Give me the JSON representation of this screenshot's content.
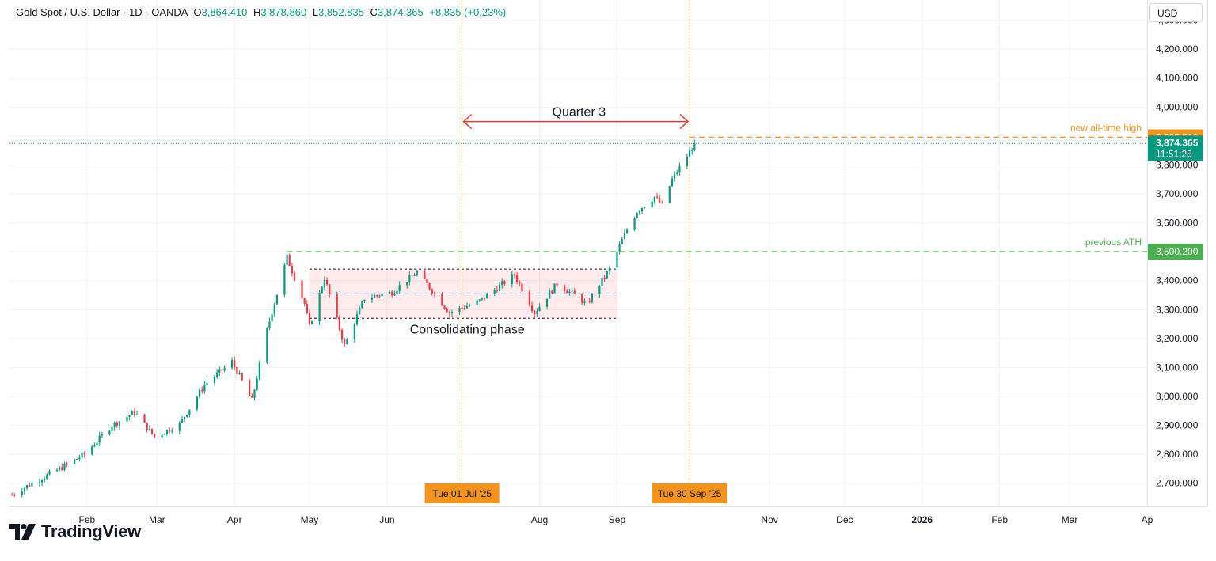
{
  "legend": {
    "symbol": "Gold Spot / U.S. Dollar · 1D · OANDA",
    "open_label": "O",
    "open": "3,864.410",
    "high_label": "H",
    "high": "3,878.860",
    "low_label": "L",
    "low": "3,852.835",
    "close_label": "C",
    "close": "3,874.365",
    "change": "+8.835 (+0.23%)"
  },
  "currency_button": "USD",
  "brand": {
    "name": "TradingView",
    "logo_icon": "tradingview-logo-icon"
  },
  "colors": {
    "up": "#089981",
    "down": "#f23645",
    "accent": "#f7931a",
    "ath": "#4caf50",
    "arrow": "#e53935"
  },
  "chart_data": {
    "type": "candlestick",
    "symbol": "Gold Spot / U.S. Dollar",
    "interval": "1D",
    "y_ticks": [
      2700,
      2800,
      2900,
      3000,
      3100,
      3200,
      3300,
      3400,
      3500,
      3600,
      3700,
      3800,
      3900,
      4000,
      4100,
      4200,
      4300
    ],
    "y_tick_labels": [
      "2,700.000",
      "2,800.000",
      "2,900.000",
      "3,000.000",
      "3,100.000",
      "3,200.000",
      "3,300.000",
      "3,400.000",
      "3,500.000",
      "3,600.000",
      "3,700.000",
      "3,800.000",
      "3,900.000",
      "4,000.000",
      "4,100.000",
      "4,200.000",
      "4,300.000"
    ],
    "ylim": [
      2620,
      4370
    ],
    "x_ticks": [
      {
        "date": "2025-02-01",
        "label": "Feb",
        "bold": false
      },
      {
        "date": "2025-03-01",
        "label": "Mar",
        "bold": false
      },
      {
        "date": "2025-04-01",
        "label": "Apr",
        "bold": false
      },
      {
        "date": "2025-05-01",
        "label": "May",
        "bold": false
      },
      {
        "date": "2025-06-01",
        "label": "Jun",
        "bold": false
      },
      {
        "date": "2025-08-01",
        "label": "Aug",
        "bold": false
      },
      {
        "date": "2025-09-01",
        "label": "Sep",
        "bold": false
      },
      {
        "date": "2025-11-01",
        "label": "Nov",
        "bold": false
      },
      {
        "date": "2025-12-01",
        "label": "Dec",
        "bold": false
      },
      {
        "date": "2026-01-01",
        "label": "2026",
        "bold": true
      },
      {
        "date": "2026-02-01",
        "label": "Feb",
        "bold": false
      },
      {
        "date": "2026-03-01",
        "label": "Mar",
        "bold": false
      },
      {
        "date": "2026-04-01",
        "label": "Ap",
        "bold": false
      }
    ],
    "xlim": [
      "2025-01-01",
      "2026-04-01"
    ],
    "vertical_markers": [
      {
        "date": "2025-07-01",
        "label": "Tue 01 Jul '25"
      },
      {
        "date": "2025-09-30",
        "label": "Tue 30 Sep '25"
      }
    ],
    "trend_points": [
      {
        "date": "2025-01-02",
        "price": 2660
      },
      {
        "date": "2025-01-10",
        "price": 2700
      },
      {
        "date": "2025-01-20",
        "price": 2745
      },
      {
        "date": "2025-01-31",
        "price": 2800
      },
      {
        "date": "2025-02-11",
        "price": 2900
      },
      {
        "date": "2025-02-20",
        "price": 2945
      },
      {
        "date": "2025-02-28",
        "price": 2860
      },
      {
        "date": "2025-03-10",
        "price": 2905
      },
      {
        "date": "2025-03-20",
        "price": 3040
      },
      {
        "date": "2025-03-31",
        "price": 3120
      },
      {
        "date": "2025-04-08",
        "price": 2985
      },
      {
        "date": "2025-04-14",
        "price": 3230
      },
      {
        "date": "2025-04-22",
        "price": 3480
      },
      {
        "date": "2025-04-29",
        "price": 3320
      },
      {
        "date": "2025-05-01",
        "price": 3240
      },
      {
        "date": "2025-05-07",
        "price": 3410
      },
      {
        "date": "2025-05-15",
        "price": 3175
      },
      {
        "date": "2025-05-23",
        "price": 3340
      },
      {
        "date": "2025-06-03",
        "price": 3360
      },
      {
        "date": "2025-06-13",
        "price": 3430
      },
      {
        "date": "2025-06-26",
        "price": 3290
      },
      {
        "date": "2025-07-08",
        "price": 3330
      },
      {
        "date": "2025-07-22",
        "price": 3420
      },
      {
        "date": "2025-07-30",
        "price": 3290
      },
      {
        "date": "2025-08-08",
        "price": 3390
      },
      {
        "date": "2025-08-20",
        "price": 3320
      },
      {
        "date": "2025-08-29",
        "price": 3440
      },
      {
        "date": "2025-09-04",
        "price": 3560
      },
      {
        "date": "2025-09-09",
        "price": 3640
      },
      {
        "date": "2025-09-16",
        "price": 3690
      },
      {
        "date": "2025-09-19",
        "price": 3660
      },
      {
        "date": "2025-09-23",
        "price": 3750
      },
      {
        "date": "2025-09-29",
        "price": 3830
      },
      {
        "date": "2025-10-02",
        "price": 3874
      }
    ],
    "price_lines": [
      {
        "name": "new-ath",
        "price": 3895.5,
        "from": "2025-09-30",
        "label": "new all-time high",
        "price_label": "3,895.500"
      },
      {
        "name": "previous-ath",
        "price": 3500.2,
        "from": "2025-04-22",
        "label": "previous ATH",
        "price_label": "3,500.200"
      }
    ],
    "current_price": {
      "price": 3874.365,
      "price_label": "3,874.365",
      "countdown": "11:51:28"
    },
    "consolidation_box": {
      "from": "2025-05-01",
      "to": "2025-09-01",
      "high": 3440,
      "low": 3270,
      "mid": 3355,
      "label": "Consolidating phase"
    },
    "quarter_arrow": {
      "from": "2025-07-01",
      "to": "2025-09-30",
      "price": 3950,
      "label": "Quarter 3"
    }
  }
}
